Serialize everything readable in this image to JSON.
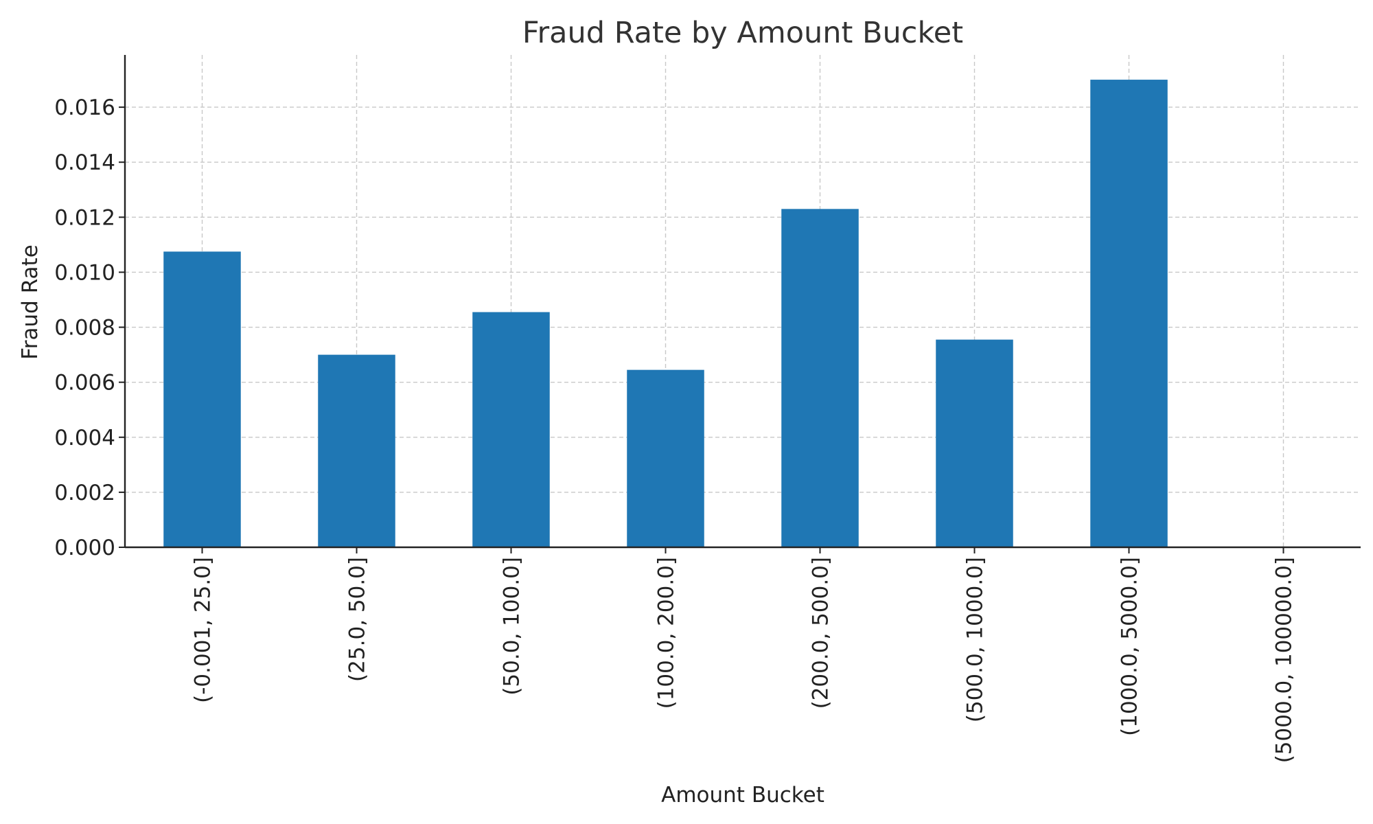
{
  "chart_data": {
    "type": "bar",
    "title": "Fraud Rate by Amount Bucket",
    "xlabel": "Amount Bucket",
    "ylabel": "Fraud Rate",
    "categories": [
      "(-0.001, 25.0]",
      "(25.0, 50.0]",
      "(50.0, 100.0]",
      "(100.0, 200.0]",
      "(200.0, 500.0]",
      "(500.0, 1000.0]",
      "(1000.0, 5000.0]",
      "(5000.0, 100000.0]"
    ],
    "values": [
      0.01075,
      0.007,
      0.00855,
      0.00645,
      0.0123,
      0.00755,
      0.017,
      0.0
    ],
    "ylim": [
      0,
      0.0179
    ],
    "yticks": [
      "0.000",
      "0.002",
      "0.004",
      "0.006",
      "0.008",
      "0.010",
      "0.012",
      "0.014",
      "0.016"
    ],
    "grid": true,
    "bar_color": "#1f77b4"
  }
}
